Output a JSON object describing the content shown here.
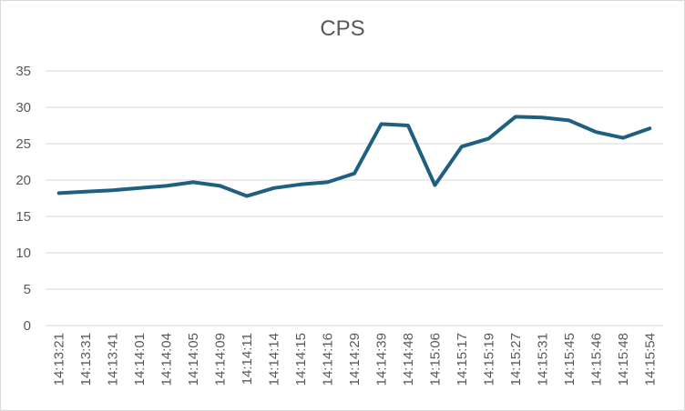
{
  "chart_data": {
    "type": "line",
    "title": "CPS",
    "xlabel": "",
    "ylabel": "",
    "categories": [
      "14:13:21",
      "14:13:31",
      "14:13:41",
      "14:14:01",
      "14:14:04",
      "14:14:05",
      "14:14:09",
      "14:14:11",
      "14:14:14",
      "14:14:15",
      "14:14:16",
      "14:14:29",
      "14:14:39",
      "14:14:48",
      "14:15:06",
      "14:15:17",
      "14:15:19",
      "14:15:27",
      "14:15:31",
      "14:15:45",
      "14:15:46",
      "14:15:48",
      "14:15:54"
    ],
    "series": [
      {
        "name": "",
        "color": "#1f5f7f",
        "values": [
          18.2,
          18.4,
          18.6,
          18.9,
          19.2,
          19.7,
          19.2,
          17.8,
          18.9,
          19.4,
          19.7,
          20.9,
          27.7,
          27.5,
          19.3,
          24.6,
          25.7,
          28.7,
          28.6,
          28.2,
          26.6,
          25.8,
          27.1
        ]
      }
    ],
    "ylim": [
      0,
      35
    ],
    "yticks": [
      0,
      5,
      10,
      15,
      20,
      25,
      30,
      35
    ],
    "grid": true,
    "legend": "none"
  }
}
